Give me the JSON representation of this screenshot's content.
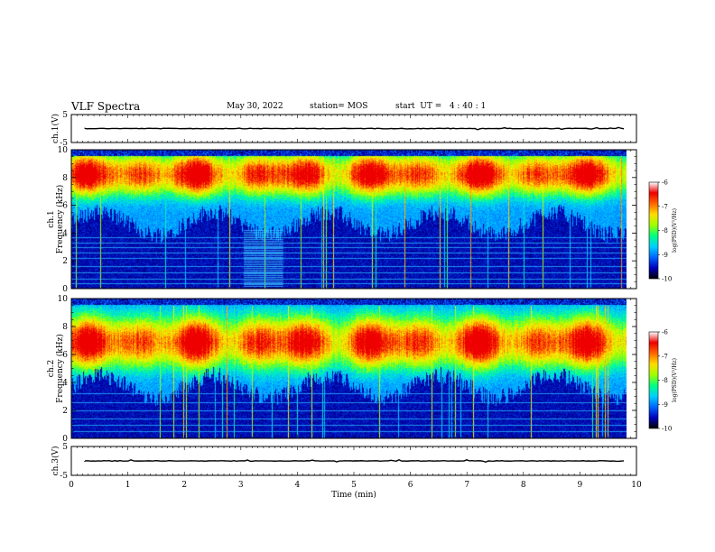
{
  "header": {
    "title": "VLF Spectra",
    "date": "May 30, 2022",
    "station": "station= MOS",
    "start": "start  UT =   4 : 40 : 1"
  },
  "colors": {
    "colormap": [
      "#000033",
      "#0000aa",
      "#0055ff",
      "#00c8ff",
      "#00ff99",
      "#99ff00",
      "#ffee00",
      "#ff7700",
      "#ee0000",
      "#ffffff"
    ],
    "trace": "#000000",
    "frame": "#000000"
  },
  "chart_data": [
    {
      "type": "line",
      "name": "ch1-waveform",
      "ylabel": "ch.1(V)",
      "ylim": [
        -5,
        5
      ],
      "yticks": [
        "5",
        "-5"
      ],
      "xlim": [
        0,
        10
      ],
      "level": 0
    },
    {
      "type": "heatmap",
      "name": "ch1-spectrogram",
      "ylabel_top": "ch.1",
      "ylabel": "Frequency (kHz)",
      "ylim": [
        0,
        10
      ],
      "yticks": [
        "0",
        "2",
        "4",
        "6",
        "8",
        "10"
      ],
      "xlim": [
        0,
        10
      ],
      "peak_band_khz": [
        7.5,
        9.0
      ],
      "lower_edge_khz": 4.5,
      "burst_min": [
        3.05,
        3.75
      ],
      "lines_khz": [
        0.4,
        0.7,
        1.2,
        1.6,
        2.2,
        2.6,
        3.0,
        3.3,
        3.7
      ],
      "colorbar": {
        "label": "log(PSD)(V²/Hz)",
        "ticks": [
          "-6",
          "-7",
          "-8",
          "-9",
          "-10"
        ],
        "range": [
          -10,
          -6
        ]
      }
    },
    {
      "type": "heatmap",
      "name": "ch2-spectrogram",
      "ylabel_top": "ch.2",
      "ylabel": "Frequency (kHz)",
      "ylim": [
        0,
        10
      ],
      "yticks": [
        "0",
        "2",
        "4",
        "6",
        "8",
        "10"
      ],
      "xlim": [
        0,
        10
      ],
      "peak_band_khz": [
        6.0,
        7.8
      ],
      "lower_edge_khz": 3.5,
      "lines_khz": [
        0.5,
        1.0,
        1.4,
        2.0,
        2.6,
        3.2
      ],
      "colorbar": {
        "label": "log(PSD)(V²/Hz)",
        "ticks": [
          "-6",
          "-7",
          "-8",
          "-9",
          "-10"
        ],
        "range": [
          -10,
          -6
        ]
      }
    },
    {
      "type": "line",
      "name": "ch3-waveform",
      "ylabel": "ch.3(V)",
      "ylim": [
        -5,
        5
      ],
      "yticks": [
        "5",
        "-5"
      ],
      "xlim": [
        0,
        10
      ],
      "level": 0
    }
  ],
  "xaxis": {
    "label": "Time  (min)",
    "ticks": [
      "0",
      "1",
      "2",
      "3",
      "4",
      "5",
      "6",
      "7",
      "8",
      "9",
      "10"
    ],
    "range": [
      0,
      10
    ],
    "data_end": 9.83
  }
}
